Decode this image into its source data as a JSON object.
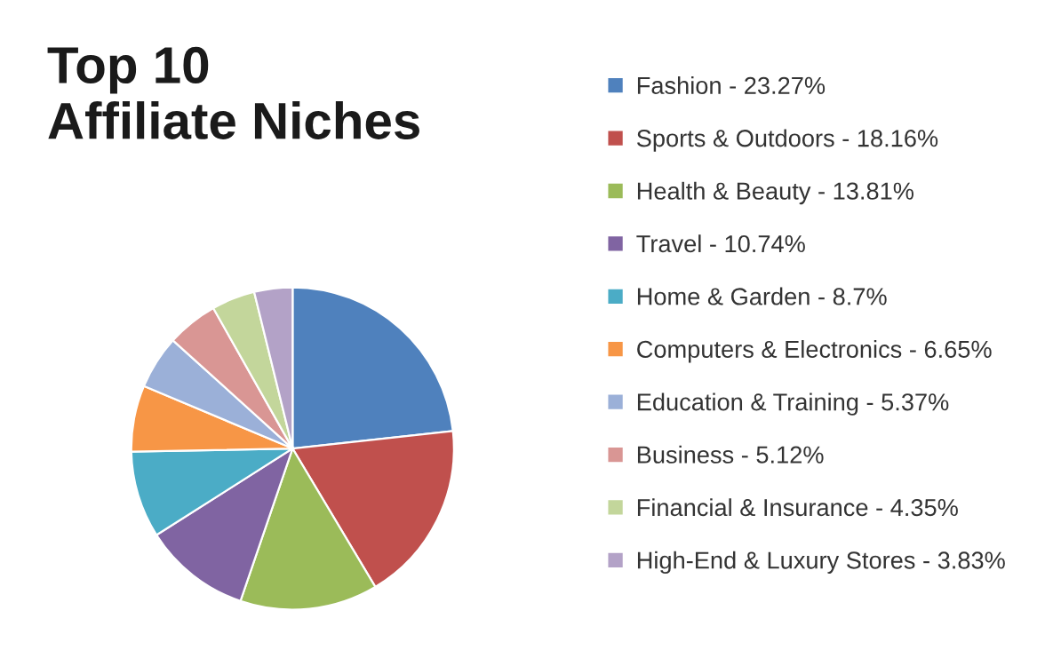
{
  "chart_data": {
    "type": "pie",
    "title": "Top 10\nAffiliate Niches",
    "categories": [
      "Fashion - 23.27%",
      "Sports & Outdoors - 18.16%",
      "Health & Beauty - 13.81%",
      "Travel - 10.74%",
      "Home & Garden - 8.7%",
      "Computers & Electronics - 6.65%",
      "Education & Training - 5.37%",
      "Business - 5.12%",
      "Financial & Insurance - 4.35%",
      "High-End & Luxury Stores - 3.83%"
    ],
    "values": [
      23.27,
      18.16,
      13.81,
      10.74,
      8.7,
      6.65,
      5.37,
      5.12,
      4.35,
      3.83
    ],
    "colors": [
      "#4f81bd",
      "#c0504d",
      "#9bbb59",
      "#8064a2",
      "#4bacc6",
      "#f79646",
      "#9bb0d8",
      "#d99694",
      "#c3d69b",
      "#b3a2c7"
    ],
    "legend": "right"
  }
}
